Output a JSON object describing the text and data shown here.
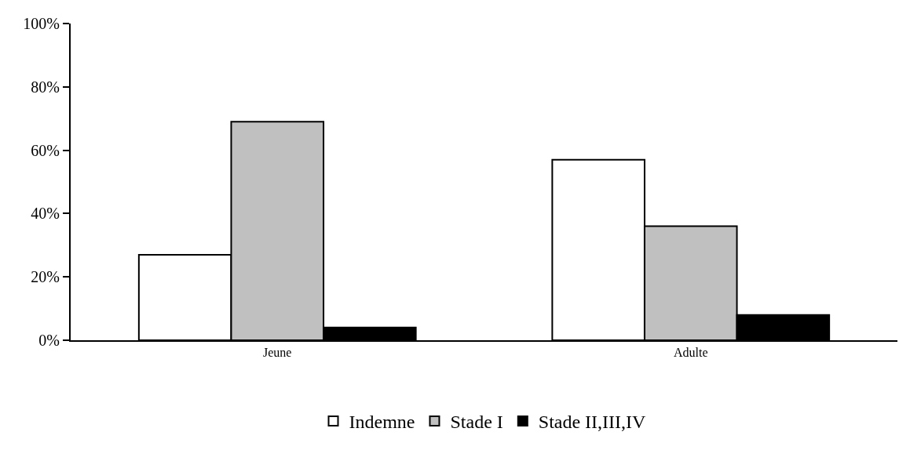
{
  "chart_data": {
    "type": "bar",
    "categories": [
      "Jeune",
      "Adulte"
    ],
    "series": [
      {
        "name": "Indemne",
        "color": "#ffffff",
        "values": [
          27,
          57
        ]
      },
      {
        "name": "Stade I",
        "color": "#c0c0c0",
        "values": [
          69,
          36
        ]
      },
      {
        "name": "Stade II,III,IV",
        "color": "#000000",
        "values": [
          4,
          8
        ]
      }
    ],
    "ylim": [
      0,
      100
    ],
    "yticks": [
      {
        "value": 0,
        "label": "0%"
      },
      {
        "value": 20,
        "label": "20%"
      },
      {
        "value": 40,
        "label": "40%"
      },
      {
        "value": 60,
        "label": "60%"
      },
      {
        "value": 80,
        "label": "80%"
      },
      {
        "value": 100,
        "label": "100%"
      }
    ],
    "legend": "bottom",
    "grid": false
  }
}
